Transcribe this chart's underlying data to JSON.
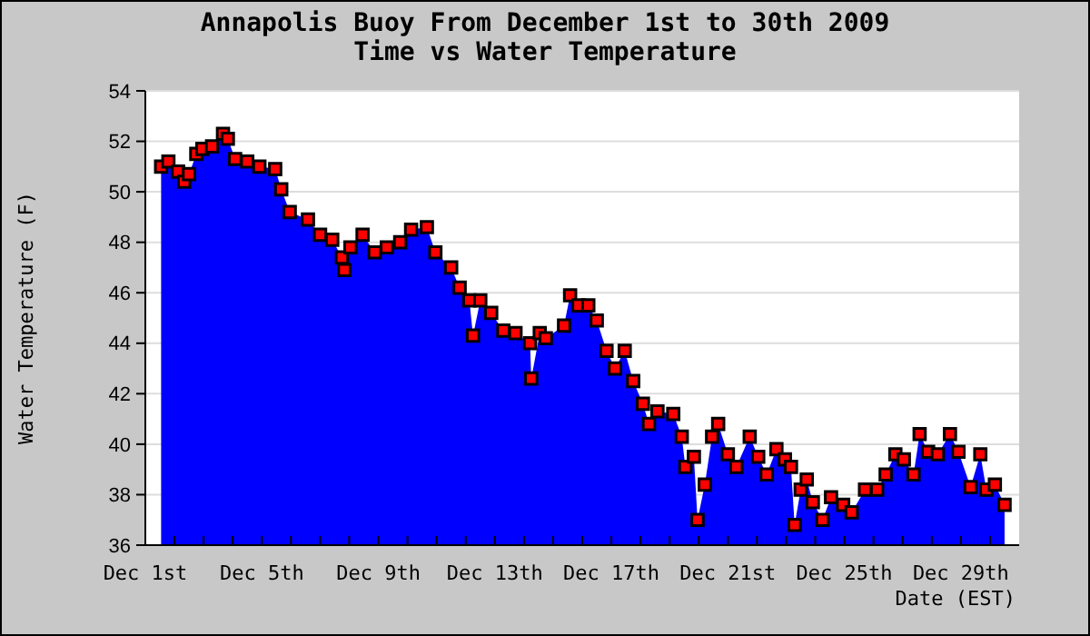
{
  "chart_data": {
    "type": "area",
    "title": "Annapolis Buoy From December 1st to 30th 2009",
    "subtitle": "Time vs Water Temperature",
    "xlabel": "Date (EST)",
    "ylabel": "Water Temperature (F)",
    "xlim": [
      "2009-12-01",
      "2009-12-31"
    ],
    "xticks": [
      {
        "value": "2009-12-01",
        "label": "Dec 1st"
      },
      {
        "value": "2009-12-02",
        "label": null
      },
      {
        "value": "2009-12-03",
        "label": null
      },
      {
        "value": "2009-12-04",
        "label": null
      },
      {
        "value": "2009-12-05",
        "label": "Dec 5th"
      },
      {
        "value": "2009-12-06",
        "label": null
      },
      {
        "value": "2009-12-07",
        "label": null
      },
      {
        "value": "2009-12-08",
        "label": null
      },
      {
        "value": "2009-12-09",
        "label": "Dec 9th"
      },
      {
        "value": "2009-12-10",
        "label": null
      },
      {
        "value": "2009-12-11",
        "label": null
      },
      {
        "value": "2009-12-12",
        "label": null
      },
      {
        "value": "2009-12-13",
        "label": "Dec 13th"
      },
      {
        "value": "2009-12-14",
        "label": null
      },
      {
        "value": "2009-12-15",
        "label": null
      },
      {
        "value": "2009-12-16",
        "label": null
      },
      {
        "value": "2009-12-17",
        "label": "Dec 17th"
      },
      {
        "value": "2009-12-18",
        "label": null
      },
      {
        "value": "2009-12-19",
        "label": null
      },
      {
        "value": "2009-12-20",
        "label": null
      },
      {
        "value": "2009-12-21",
        "label": "Dec 21st"
      },
      {
        "value": "2009-12-22",
        "label": null
      },
      {
        "value": "2009-12-23",
        "label": null
      },
      {
        "value": "2009-12-24",
        "label": null
      },
      {
        "value": "2009-12-25",
        "label": "Dec 25th"
      },
      {
        "value": "2009-12-26",
        "label": null
      },
      {
        "value": "2009-12-27",
        "label": null
      },
      {
        "value": "2009-12-28",
        "label": null
      },
      {
        "value": "2009-12-29",
        "label": "Dec 29th"
      },
      {
        "value": "2009-12-30",
        "label": null
      }
    ],
    "ylim": [
      36,
      54
    ],
    "yticks": [
      36,
      38,
      40,
      42,
      44,
      46,
      48,
      50,
      52,
      54
    ],
    "grid": "y",
    "x": [
      "2009-12-01T13:00",
      "2009-12-01T19:00",
      "2009-12-02T03:00",
      "2009-12-02T08:00",
      "2009-12-02T12:00",
      "2009-12-02T18:00",
      "2009-12-02T23:00",
      "2009-12-03T07:00",
      "2009-12-03T16:00",
      "2009-12-03T20:00",
      "2009-12-04T02:00",
      "2009-12-04T12:00",
      "2009-12-04T22:00",
      "2009-12-05T11:00",
      "2009-12-05T16:00",
      "2009-12-05T23:00",
      "2009-12-06T14:00",
      "2009-12-07T00:00",
      "2009-12-07T10:00",
      "2009-12-07T18:00",
      "2009-12-07T20:00",
      "2009-12-08T01:00",
      "2009-12-08T11:00",
      "2009-12-08T21:00",
      "2009-12-09T07:00",
      "2009-12-09T18:00",
      "2009-12-10T03:00",
      "2009-12-10T16:00",
      "2009-12-10T23:00",
      "2009-12-11T12:00",
      "2009-12-11T19:00",
      "2009-12-12T03:00",
      "2009-12-12T06:00",
      "2009-12-12T12:00",
      "2009-12-12T21:00",
      "2009-12-13T07:00",
      "2009-12-13T17:00",
      "2009-12-14T05:00",
      "2009-12-14T06:00",
      "2009-12-14T13:00",
      "2009-12-14T18:00",
      "2009-12-15T09:00",
      "2009-12-15T14:00",
      "2009-12-15T21:00",
      "2009-12-16T05:00",
      "2009-12-16T12:00",
      "2009-12-16T20:00",
      "2009-12-17T03:00",
      "2009-12-17T11:00",
      "2009-12-17T18:00",
      "2009-12-18T02:00",
      "2009-12-18T07:00",
      "2009-12-18T14:00",
      "2009-12-19T03:00",
      "2009-12-19T10:00",
      "2009-12-19T13:00",
      "2009-12-19T20:00",
      "2009-12-19T23:00",
      "2009-12-20T05:00",
      "2009-12-20T11:00",
      "2009-12-20T16:00",
      "2009-12-21T00:00",
      "2009-12-21T07:00",
      "2009-12-21T18:00",
      "2009-12-22T01:00",
      "2009-12-22T08:00",
      "2009-12-22T16:00",
      "2009-12-22T23:00",
      "2009-12-23T04:00",
      "2009-12-23T07:00",
      "2009-12-23T12:00",
      "2009-12-23T17:00",
      "2009-12-23T22:00",
      "2009-12-24T06:00",
      "2009-12-24T13:00",
      "2009-12-24T23:00",
      "2009-12-25T06:00",
      "2009-12-25T17:00",
      "2009-12-26T03:00",
      "2009-12-26T10:00",
      "2009-12-26T18:00",
      "2009-12-27T01:00",
      "2009-12-27T09:00",
      "2009-12-27T14:00",
      "2009-12-27T21:00",
      "2009-12-28T05:00",
      "2009-12-28T15:00",
      "2009-12-28T22:00",
      "2009-12-29T08:00",
      "2009-12-29T16:00",
      "2009-12-29T21:00",
      "2009-12-30T04:00",
      "2009-12-30T12:00"
    ],
    "series": [
      {
        "color": "#0000ff",
        "values": [
          51.0,
          51.2,
          50.8,
          50.4,
          50.7,
          51.5,
          51.7,
          51.8,
          52.3,
          52.1,
          51.3,
          51.2,
          51.0,
          50.9,
          50.1,
          49.2,
          48.9,
          48.3,
          48.1,
          47.4,
          46.9,
          47.8,
          48.3,
          47.6,
          47.8,
          48.0,
          48.5,
          48.6,
          47.6,
          47.0,
          46.2,
          45.7,
          44.3,
          45.7,
          45.2,
          44.5,
          44.4,
          44.0,
          42.6,
          44.4,
          44.2,
          44.7,
          45.9,
          45.5,
          45.5,
          44.9,
          43.7,
          43.0,
          43.7,
          42.5,
          41.6,
          40.8,
          41.3,
          41.2,
          40.3,
          39.1,
          39.5,
          37.0,
          38.4,
          40.3,
          40.8,
          39.6,
          39.1,
          40.3,
          39.5,
          38.8,
          39.8,
          39.4,
          39.1,
          36.8,
          38.2,
          38.6,
          37.7,
          37.0,
          37.9,
          37.6,
          37.3,
          38.2,
          38.2,
          38.8,
          39.6,
          39.4,
          38.8,
          40.4,
          39.7,
          39.6,
          40.4,
          39.7,
          38.3,
          39.6,
          38.2,
          38.4,
          37.6
        ]
      },
      {
        "type": "scatter",
        "color": "#ff0000",
        "marker": "square",
        "values": [
          51.0,
          51.2,
          50.8,
          50.4,
          50.7,
          51.5,
          51.7,
          51.8,
          52.3,
          52.1,
          51.3,
          51.2,
          51.0,
          50.9,
          50.1,
          49.2,
          48.9,
          48.3,
          48.1,
          47.4,
          46.9,
          47.8,
          48.3,
          47.6,
          47.8,
          48.0,
          48.5,
          48.6,
          47.6,
          47.0,
          46.2,
          45.7,
          44.3,
          45.7,
          45.2,
          44.5,
          44.4,
          44.0,
          42.6,
          44.4,
          44.2,
          44.7,
          45.9,
          45.5,
          45.5,
          44.9,
          43.7,
          43.0,
          43.7,
          42.5,
          41.6,
          40.8,
          41.3,
          41.2,
          40.3,
          39.1,
          39.5,
          37.0,
          38.4,
          40.3,
          40.8,
          39.6,
          39.1,
          40.3,
          39.5,
          38.8,
          39.8,
          39.4,
          39.1,
          36.8,
          38.2,
          38.6,
          37.7,
          37.0,
          37.9,
          37.6,
          37.3,
          38.2,
          38.2,
          38.8,
          39.6,
          39.4,
          38.8,
          40.4,
          39.7,
          39.6,
          40.4,
          39.7,
          38.3,
          39.6,
          38.2,
          38.4,
          37.6
        ]
      }
    ]
  }
}
